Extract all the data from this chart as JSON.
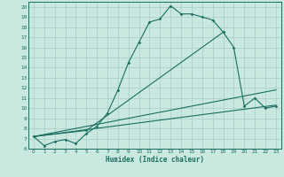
{
  "xlabel": "Humidex (Indice chaleur)",
  "background_color": "#c8e8e0",
  "grid_color": "#a8ccc4",
  "line_color": "#1a6e60",
  "xlim": [
    -0.5,
    23.5
  ],
  "ylim": [
    6,
    20.5
  ],
  "xticks": [
    0,
    1,
    2,
    3,
    4,
    5,
    6,
    7,
    8,
    9,
    10,
    11,
    12,
    13,
    14,
    15,
    16,
    17,
    18,
    19,
    20,
    21,
    22,
    23
  ],
  "yticks": [
    6,
    7,
    8,
    9,
    10,
    11,
    12,
    13,
    14,
    15,
    16,
    17,
    18,
    19,
    20
  ],
  "line1_x": [
    0,
    1,
    2,
    3,
    4,
    5,
    6,
    7,
    8,
    9,
    10,
    11,
    12,
    13,
    14,
    15,
    16,
    17,
    18
  ],
  "line1_y": [
    7.2,
    6.3,
    6.7,
    6.9,
    6.5,
    7.5,
    8.2,
    9.5,
    11.8,
    14.5,
    16.5,
    18.5,
    18.8,
    20.1,
    19.3,
    19.3,
    19.0,
    18.7,
    17.5
  ],
  "line2_x": [
    5,
    18,
    19,
    20,
    21,
    22,
    23
  ],
  "line2_y": [
    7.8,
    17.5,
    16.0,
    10.2,
    11.0,
    10.0,
    10.2
  ],
  "line3_x": [
    0,
    23
  ],
  "line3_y": [
    7.2,
    11.8
  ],
  "line4_x": [
    0,
    23
  ],
  "line4_y": [
    7.2,
    10.3
  ]
}
